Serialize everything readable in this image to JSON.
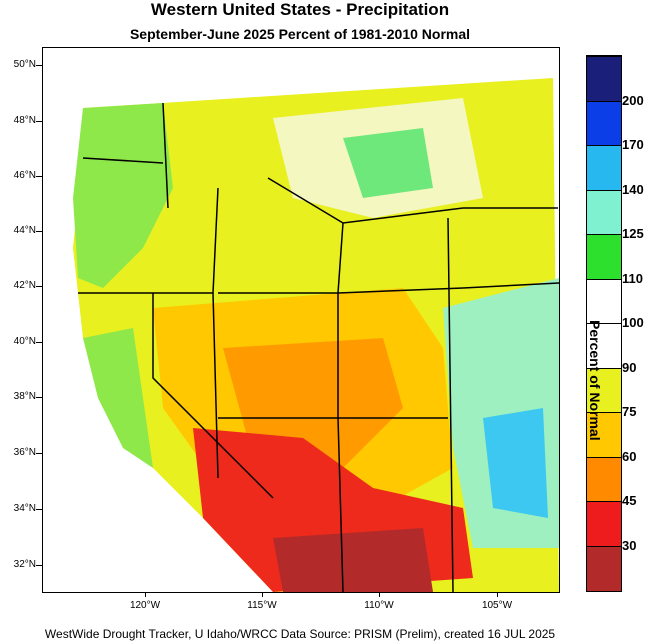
{
  "title": "Western United States - Precipitation",
  "subtitle": "September-June 2025  Percent of 1981-2010 Normal",
  "latitude_labels": [
    "50°N",
    "48°N",
    "46°N",
    "44°N",
    "42°N",
    "40°N",
    "38°N",
    "36°N",
    "34°N",
    "32°N"
  ],
  "longitude_labels": [
    "120°W",
    "115°W",
    "110°W",
    "105°W"
  ],
  "legend": {
    "title": "Percent of Normal",
    "labels": [
      "200",
      "170",
      "140",
      "125",
      "110",
      "100",
      "90",
      "75",
      "60",
      "45",
      "30"
    ],
    "colors": [
      "#1a1f7a",
      "#0b3ee6",
      "#28b8f0",
      "#7ff0d0",
      "#2ee02e",
      "#ffffff",
      "#ffffff",
      "#e8f020",
      "#ffc800",
      "#ff8a00",
      "#ee1c1c",
      "#b22a2a"
    ]
  },
  "footer": "WestWide Drought Tracker, U Idaho/WRCC Data Source: PRISM (Prelim), created 16 JUL 2025"
}
